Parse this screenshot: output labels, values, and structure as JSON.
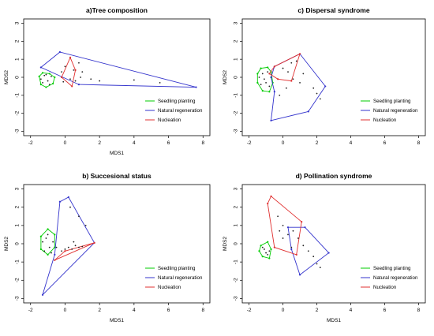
{
  "legend_entries": [
    {
      "name": "Seedling planting",
      "color": "#00cc00"
    },
    {
      "name": "Natural regeneration",
      "color": "#3333cc"
    },
    {
      "name": "Nucleation",
      "color": "#e03030"
    }
  ],
  "chart_data": [
    {
      "type": "scatter",
      "title": "a)Tree composition",
      "xlabel": "MDS1",
      "ylabel": "MDS2",
      "xlim": [
        -2,
        8
      ],
      "ylim": [
        -3,
        3
      ],
      "xticks": [
        "-2",
        "0",
        "2",
        "4",
        "6",
        "8"
      ],
      "yticks": [
        "-3",
        "-2",
        "-1",
        "0",
        "1",
        "2",
        "3"
      ],
      "legend_position": "bottom-right",
      "grid": false,
      "hulls": [
        {
          "name": "Seedling planting",
          "points": [
            [
              -1.5,
              0.05
            ],
            [
              -1.3,
              0.25
            ],
            [
              -0.9,
              0.2
            ],
            [
              -0.6,
              0.0
            ],
            [
              -0.7,
              -0.35
            ],
            [
              -1.1,
              -0.55
            ],
            [
              -1.4,
              -0.4
            ]
          ]
        },
        {
          "name": "Natural regeneration",
          "points": [
            [
              -1.4,
              0.55
            ],
            [
              -0.3,
              1.4
            ],
            [
              7.6,
              -0.55
            ],
            [
              0.8,
              -0.4
            ]
          ]
        },
        {
          "name": "Nucleation",
          "points": [
            [
              0.3,
              1.1
            ],
            [
              -0.2,
              0.0
            ],
            [
              0.4,
              -0.5
            ],
            [
              0.6,
              0.4
            ]
          ]
        }
      ],
      "points": [
        [
          -1.4,
          -0.1
        ],
        [
          -1.2,
          0.1
        ],
        [
          -1.0,
          -0.2
        ],
        [
          -0.8,
          0.05
        ],
        [
          -1.3,
          -0.3
        ],
        [
          -0.9,
          -0.4
        ],
        [
          -1.1,
          0.15
        ],
        [
          -0.2,
          0.3
        ],
        [
          0.0,
          0.6
        ],
        [
          0.5,
          0.4
        ],
        [
          0.8,
          0.8
        ],
        [
          1.0,
          0.3
        ],
        [
          1.5,
          -0.1
        ],
        [
          2.0,
          -0.2
        ],
        [
          4.0,
          -0.15
        ],
        [
          5.5,
          -0.3
        ],
        [
          0.3,
          -0.1
        ],
        [
          0.9,
          0.0
        ],
        [
          -0.1,
          -0.25
        ],
        [
          0.6,
          -0.2
        ]
      ]
    },
    {
      "type": "scatter",
      "title": "c) Dispersal syndrome",
      "xlabel": "",
      "ylabel": "MDS2",
      "xlim": [
        -2,
        8
      ],
      "ylim": [
        -3,
        3
      ],
      "xticks": [
        "-2",
        "0",
        "2",
        "4",
        "6",
        "8"
      ],
      "yticks": [
        "-3",
        "-2",
        "-1",
        "0",
        "1",
        "2",
        "3"
      ],
      "legend_position": "bottom-right",
      "grid": false,
      "hulls": [
        {
          "name": "Seedling planting",
          "points": [
            [
              -1.3,
              0.5
            ],
            [
              -0.9,
              0.55
            ],
            [
              -0.7,
              0.3
            ],
            [
              -0.6,
              -0.3
            ],
            [
              -0.8,
              -0.8
            ],
            [
              -1.2,
              -0.75
            ],
            [
              -1.5,
              -0.3
            ],
            [
              -1.5,
              0.2
            ]
          ]
        },
        {
          "name": "Natural regeneration",
          "points": [
            [
              -0.5,
              0.6
            ],
            [
              1.0,
              1.3
            ],
            [
              2.5,
              -0.5
            ],
            [
              1.5,
              -1.9
            ],
            [
              -0.7,
              -2.4
            ],
            [
              -0.5,
              -0.8
            ],
            [
              -0.7,
              0.0
            ]
          ]
        },
        {
          "name": "Nucleation",
          "points": [
            [
              -0.5,
              0.6
            ],
            [
              1.0,
              1.3
            ],
            [
              0.5,
              -0.2
            ],
            [
              -0.3,
              -0.1
            ],
            [
              -0.8,
              0.2
            ]
          ]
        }
      ],
      "points": [
        [
          -1.4,
          0.0
        ],
        [
          -1.2,
          0.2
        ],
        [
          -1.0,
          -0.3
        ],
        [
          -0.8,
          -0.5
        ],
        [
          -1.1,
          -0.1
        ],
        [
          -0.9,
          0.3
        ],
        [
          -1.3,
          -0.4
        ],
        [
          0.0,
          0.5
        ],
        [
          0.5,
          0.8
        ],
        [
          0.3,
          0.3
        ],
        [
          1.2,
          0.2
        ],
        [
          1.0,
          -0.3
        ],
        [
          1.8,
          -0.6
        ],
        [
          2.0,
          -0.9
        ],
        [
          2.2,
          -1.2
        ],
        [
          0.2,
          -0.6
        ],
        [
          -0.2,
          -1.0
        ],
        [
          0.8,
          0.9
        ],
        [
          0.6,
          -0.1
        ]
      ]
    },
    {
      "type": "scatter",
      "title": "b) Succesional status",
      "xlabel": "MDS1",
      "ylabel": "MDS2",
      "xlim": [
        -2,
        8
      ],
      "ylim": [
        -3,
        3
      ],
      "xticks": [
        "-2",
        "0",
        "2",
        "4",
        "6",
        "8"
      ],
      "yticks": [
        "-3",
        "-2",
        "-1",
        "0",
        "1",
        "2",
        "3"
      ],
      "legend_position": "bottom-right",
      "grid": false,
      "hulls": [
        {
          "name": "Seedling planting",
          "points": [
            [
              -1.4,
              0.4
            ],
            [
              -1.0,
              0.8
            ],
            [
              -0.6,
              0.5
            ],
            [
              -0.6,
              -0.2
            ],
            [
              -1.0,
              -0.6
            ],
            [
              -1.4,
              -0.3
            ]
          ]
        },
        {
          "name": "Natural regeneration",
          "points": [
            [
              -0.3,
              2.3
            ],
            [
              0.2,
              2.55
            ],
            [
              1.7,
              0.05
            ],
            [
              -1.3,
              -2.8
            ],
            [
              -0.6,
              -0.6
            ]
          ]
        },
        {
          "name": "Nucleation",
          "points": [
            [
              -0.6,
              -0.9
            ],
            [
              1.7,
              0.05
            ],
            [
              0.0,
              -0.4
            ]
          ]
        }
      ],
      "points": [
        [
          -1.3,
          0.1
        ],
        [
          -1.1,
          0.3
        ],
        [
          -0.9,
          -0.2
        ],
        [
          -0.7,
          0.1
        ],
        [
          -1.2,
          -0.4
        ],
        [
          -1.0,
          0.5
        ],
        [
          -0.8,
          -0.5
        ],
        [
          -0.5,
          -0.2
        ],
        [
          -0.2,
          -0.4
        ],
        [
          0.0,
          -0.3
        ],
        [
          0.2,
          -0.2
        ],
        [
          0.4,
          -0.3
        ],
        [
          0.6,
          -0.1
        ],
        [
          0.8,
          -0.2
        ],
        [
          1.0,
          -0.15
        ],
        [
          0.5,
          0.1
        ],
        [
          1.2,
          1.0
        ],
        [
          0.3,
          2.0
        ],
        [
          0.8,
          1.5
        ]
      ]
    },
    {
      "type": "scatter",
      "title": "d) Pollination syndrome",
      "xlabel": "MDS1",
      "ylabel": "MDS2",
      "xlim": [
        -2,
        8
      ],
      "ylim": [
        -3,
        3
      ],
      "xticks": [
        "-2",
        "0",
        "2",
        "4",
        "6",
        "8"
      ],
      "yticks": [
        "-3",
        "-2",
        "-1",
        "0",
        "1",
        "2",
        "3"
      ],
      "legend_position": "bottom-right",
      "grid": false,
      "hulls": [
        {
          "name": "Seedling planting",
          "points": [
            [
              -1.3,
              -0.1
            ],
            [
              -0.9,
              0.1
            ],
            [
              -0.7,
              -0.3
            ],
            [
              -0.8,
              -0.8
            ],
            [
              -1.2,
              -0.7
            ],
            [
              -1.4,
              -0.4
            ]
          ]
        },
        {
          "name": "Natural regeneration",
          "points": [
            [
              0.3,
              0.9
            ],
            [
              1.3,
              0.9
            ],
            [
              2.7,
              -0.5
            ],
            [
              1.0,
              -1.7
            ],
            [
              0.5,
              -0.3
            ]
          ]
        },
        {
          "name": "Nucleation",
          "points": [
            [
              -0.7,
              2.6
            ],
            [
              1.1,
              1.2
            ],
            [
              0.8,
              -0.6
            ],
            [
              -0.5,
              -0.2
            ],
            [
              -0.9,
              2.2
            ]
          ]
        }
      ],
      "points": [
        [
          -1.2,
          -0.2
        ],
        [
          -1.0,
          -0.5
        ],
        [
          -0.9,
          -0.6
        ],
        [
          -1.1,
          -0.3
        ],
        [
          -0.8,
          -0.4
        ],
        [
          -0.3,
          1.5
        ],
        [
          0.0,
          1.0
        ],
        [
          0.3,
          0.5
        ],
        [
          0.6,
          0.7
        ],
        [
          0.9,
          0.3
        ],
        [
          1.2,
          -0.1
        ],
        [
          1.5,
          -0.4
        ],
        [
          1.8,
          -0.7
        ],
        [
          2.0,
          -1.1
        ],
        [
          2.2,
          -1.3
        ],
        [
          0.0,
          0.3
        ],
        [
          -0.2,
          0.7
        ],
        [
          0.5,
          -0.2
        ]
      ]
    }
  ]
}
